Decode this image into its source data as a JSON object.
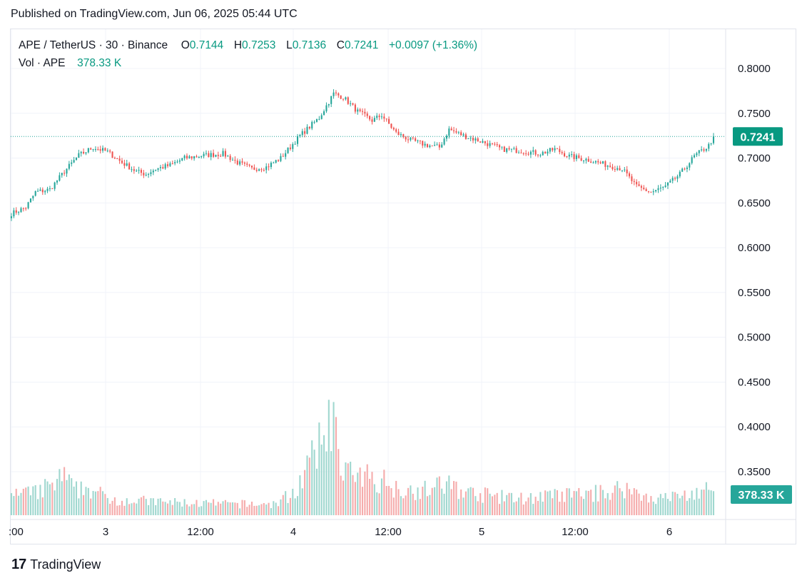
{
  "published": "Published on TradingView.com, Jun 06, 2025 05:44 UTC",
  "legend": {
    "symbol": "APE / TetherUS · 30 · Binance",
    "o_label": "O",
    "o": "0.7144",
    "h_label": "H",
    "h": "0.7253",
    "l_label": "L",
    "l": "0.7136",
    "c_label": "C",
    "c": "0.7241",
    "change": "+0.0097 (+1.36%)",
    "vol_label": "Vol · APE",
    "vol": "378.33 K"
  },
  "footer": {
    "logo_glyph": "17",
    "brand": "TradingView"
  },
  "colors": {
    "up": "#26a69a",
    "down": "#ef5350",
    "up_text": "#089981",
    "vol_up": "#9fd7cf",
    "vol_down": "#f5abab",
    "grid": "#f0f3fa"
  },
  "chart_data": {
    "type": "candlestick",
    "interval": "30",
    "y_ticks": [
      "0.8000",
      "0.7500",
      "0.7000",
      "0.6500",
      "0.6000",
      "0.5500",
      "0.5000",
      "0.4500",
      "0.4000",
      "0.3500"
    ],
    "ylim": [
      0.3,
      0.82
    ],
    "x_ticks": [
      ":00",
      "3",
      "12:00",
      "4",
      "12:00",
      "5",
      "12:00",
      "6"
    ],
    "last_price_label": "0.7241",
    "last_volume_label": "378.33 K",
    "grid": true,
    "close_anchors": [
      [
        0,
        0.638
      ],
      [
        6,
        0.645
      ],
      [
        10,
        0.662
      ],
      [
        16,
        0.665
      ],
      [
        22,
        0.685
      ],
      [
        28,
        0.703
      ],
      [
        34,
        0.712
      ],
      [
        40,
        0.707
      ],
      [
        46,
        0.695
      ],
      [
        52,
        0.685
      ],
      [
        56,
        0.682
      ],
      [
        60,
        0.688
      ],
      [
        66,
        0.692
      ],
      [
        72,
        0.7
      ],
      [
        80,
        0.703
      ],
      [
        88,
        0.705
      ],
      [
        94,
        0.695
      ],
      [
        100,
        0.688
      ],
      [
        106,
        0.69
      ],
      [
        112,
        0.7
      ],
      [
        120,
        0.725
      ],
      [
        128,
        0.745
      ],
      [
        134,
        0.772
      ],
      [
        138,
        0.768
      ],
      [
        144,
        0.752
      ],
      [
        150,
        0.742
      ],
      [
        154,
        0.748
      ],
      [
        160,
        0.728
      ],
      [
        166,
        0.72
      ],
      [
        172,
        0.715
      ],
      [
        178,
        0.712
      ],
      [
        182,
        0.732
      ],
      [
        188,
        0.725
      ],
      [
        196,
        0.718
      ],
      [
        204,
        0.71
      ],
      [
        212,
        0.708
      ],
      [
        220,
        0.705
      ],
      [
        226,
        0.71
      ],
      [
        232,
        0.702
      ],
      [
        240,
        0.698
      ],
      [
        248,
        0.692
      ],
      [
        254,
        0.688
      ],
      [
        260,
        0.668
      ],
      [
        266,
        0.662
      ],
      [
        272,
        0.668
      ],
      [
        278,
        0.682
      ],
      [
        284,
        0.702
      ],
      [
        290,
        0.714
      ],
      [
        292,
        0.7241
      ]
    ],
    "volume_anchors": [
      [
        0,
        18
      ],
      [
        10,
        20
      ],
      [
        18,
        28
      ],
      [
        22,
        35
      ],
      [
        26,
        22
      ],
      [
        32,
        25
      ],
      [
        40,
        15
      ],
      [
        60,
        12
      ],
      [
        90,
        10
      ],
      [
        110,
        10
      ],
      [
        118,
        22
      ],
      [
        124,
        45
      ],
      [
        128,
        60
      ],
      [
        131,
        75
      ],
      [
        132,
        110
      ],
      [
        134,
        78
      ],
      [
        138,
        45
      ],
      [
        144,
        30
      ],
      [
        148,
        35
      ],
      [
        154,
        32
      ],
      [
        160,
        25
      ],
      [
        170,
        22
      ],
      [
        182,
        28
      ],
      [
        190,
        20
      ],
      [
        210,
        15
      ],
      [
        230,
        18
      ],
      [
        245,
        20
      ],
      [
        255,
        25
      ],
      [
        262,
        18
      ],
      [
        270,
        15
      ],
      [
        280,
        18
      ],
      [
        292,
        24
      ]
    ]
  }
}
